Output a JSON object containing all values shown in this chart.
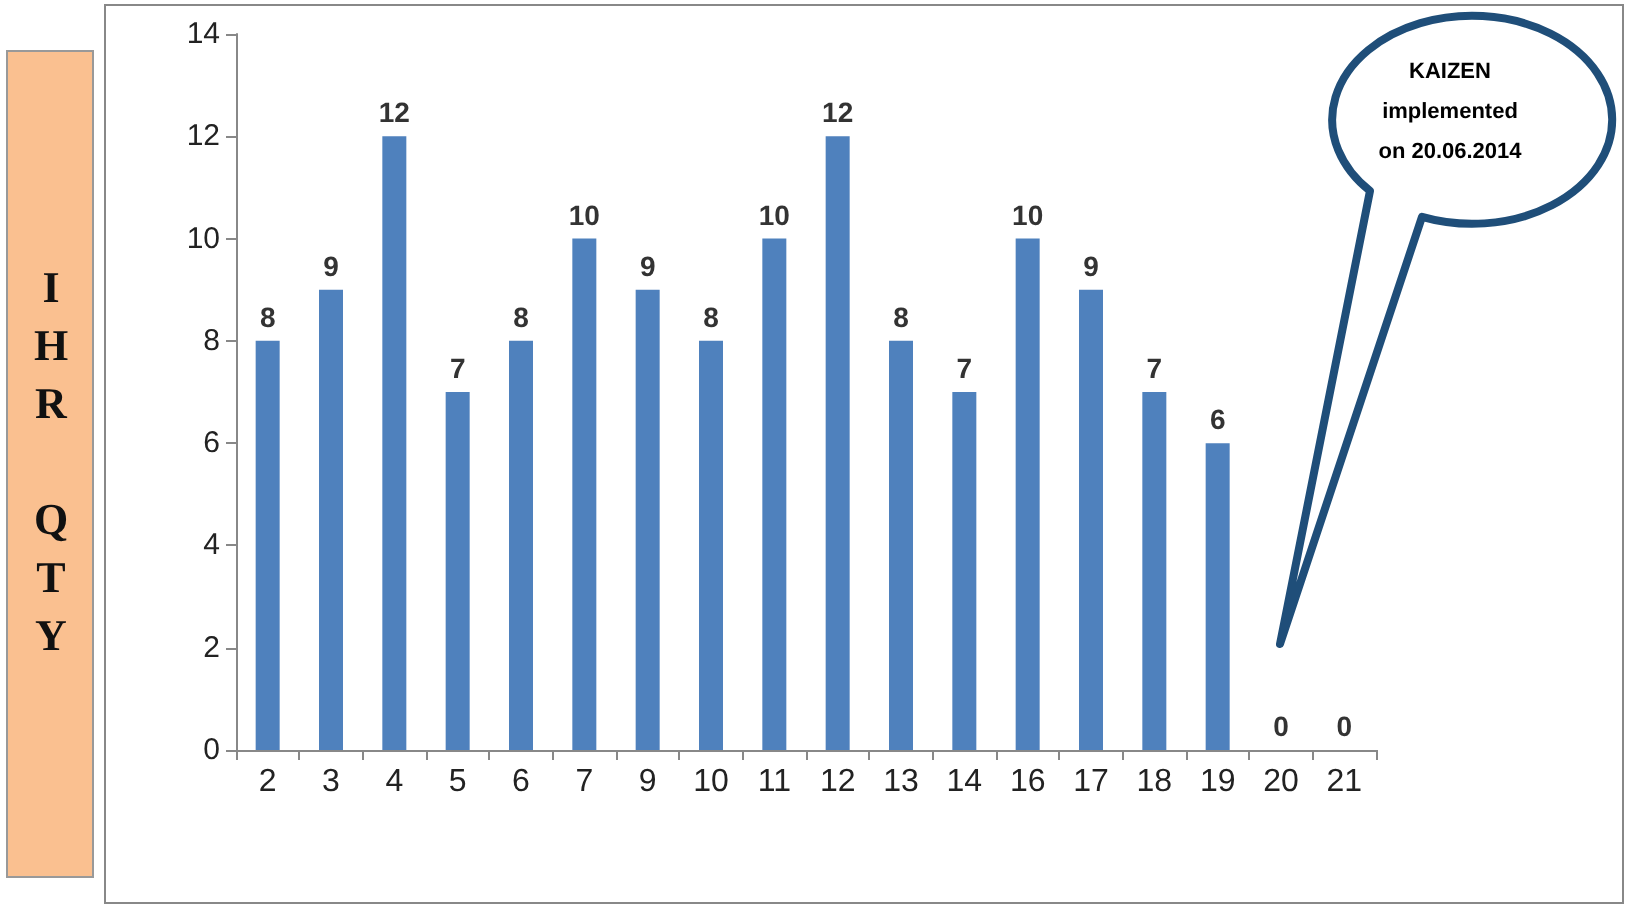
{
  "chart_data": {
    "type": "bar",
    "ylabel": "IHR QTY",
    "categories": [
      "2",
      "3",
      "4",
      "5",
      "6",
      "7",
      "9",
      "10",
      "11",
      "12",
      "13",
      "14",
      "16",
      "17",
      "18",
      "19",
      "20",
      "21"
    ],
    "values": [
      8,
      9,
      12,
      7,
      8,
      10,
      9,
      8,
      10,
      12,
      8,
      7,
      10,
      9,
      7,
      6,
      0,
      0
    ],
    "color": "#4f81bd",
    "ylim": [
      0,
      14
    ],
    "yticks": [
      0,
      2,
      4,
      6,
      8,
      10,
      12,
      14
    ],
    "grid": false,
    "data_labels": true,
    "annotations": [
      "KAIZEN implemented on 20.06.2014"
    ]
  }
}
